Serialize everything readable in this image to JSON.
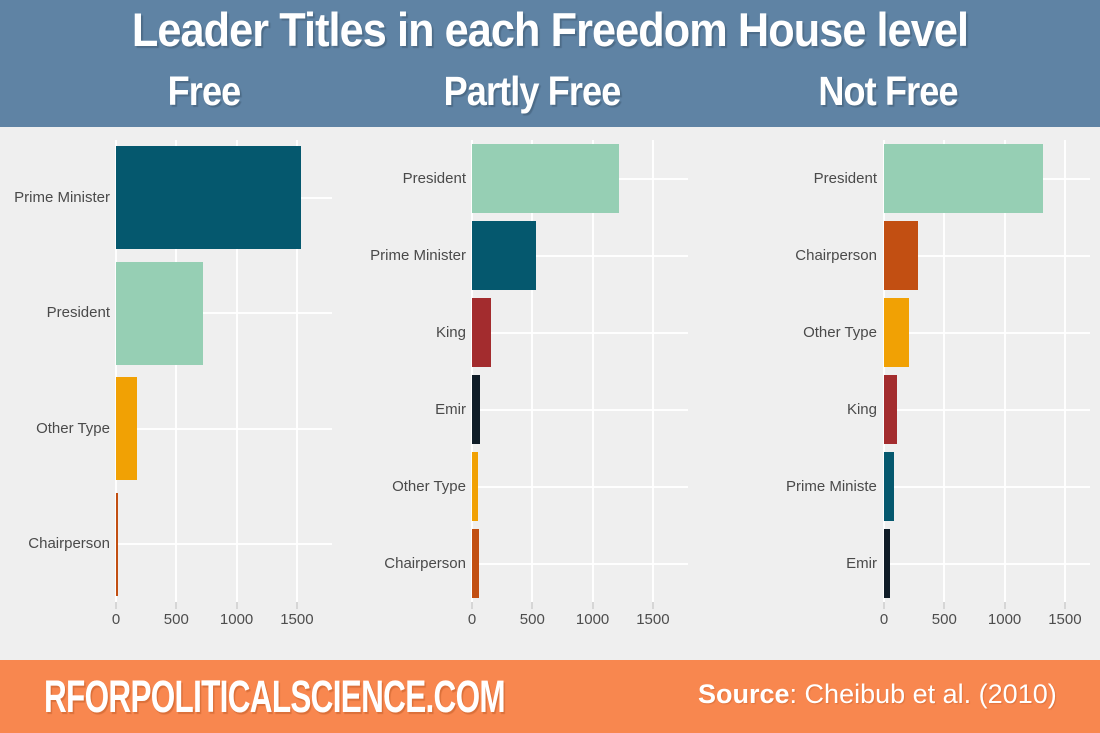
{
  "header": {
    "title": "Leader Titles in each Freedom House level",
    "facets": [
      "Free",
      "Partly Free",
      "Not Free"
    ]
  },
  "colors": {
    "header_bg": "#5F83A4",
    "chart_bg": "#EFEFEF",
    "footer_bg": "#F8874F",
    "gridline": "#FFFFFF",
    "axis_text": "#4D4D4D",
    "teal": "#05586E",
    "mint": "#96CFB4",
    "amber": "#F1A104",
    "dark_red": "#A32C2E",
    "navy": "#101D28",
    "rust": "#C24F12"
  },
  "chart_data": [
    {
      "type": "bar",
      "orientation": "horizontal",
      "facet": "Free",
      "categories": [
        "Prime Minister",
        "President",
        "Other Type",
        "Chairperson"
      ],
      "values": [
        1530,
        720,
        170,
        7
      ],
      "bar_colors": [
        "#05586E",
        "#96CFB4",
        "#F1A104",
        "#C24F12"
      ],
      "x_ticks": [
        0,
        500,
        1000,
        1500
      ],
      "xlim": [
        0,
        1790
      ],
      "grid": true,
      "legend": false
    },
    {
      "type": "bar",
      "orientation": "horizontal",
      "facet": "Partly Free",
      "categories": [
        "President",
        "Prime Minister",
        "King",
        "Emir",
        "Other Type",
        "Chairperson"
      ],
      "values": [
        1220,
        530,
        160,
        65,
        50,
        55
      ],
      "bar_colors": [
        "#96CFB4",
        "#05586E",
        "#A32C2E",
        "#101D28",
        "#F1A104",
        "#C24F12"
      ],
      "x_ticks": [
        0,
        500,
        1000,
        1500
      ],
      "xlim": [
        0,
        1790
      ],
      "grid": true,
      "legend": false
    },
    {
      "type": "bar",
      "orientation": "horizontal",
      "facet": "Not Free",
      "categories": [
        "President",
        "Chairperson",
        "Other Type",
        "King",
        "Prime Minister",
        "Emir"
      ],
      "values": [
        1320,
        285,
        210,
        110,
        80,
        50
      ],
      "bar_colors": [
        "#96CFB4",
        "#C24F12",
        "#F1A104",
        "#A32C2E",
        "#05586E",
        "#101D28"
      ],
      "x_ticks": [
        0,
        500,
        1000,
        1500
      ],
      "xlim": [
        0,
        1700
      ],
      "grid": true,
      "legend": false
    }
  ],
  "footer": {
    "website": "RFORPOLITICALSCIENCE.COM",
    "source_label": "Source",
    "source_text": ": Cheibub et al. (2010)"
  }
}
